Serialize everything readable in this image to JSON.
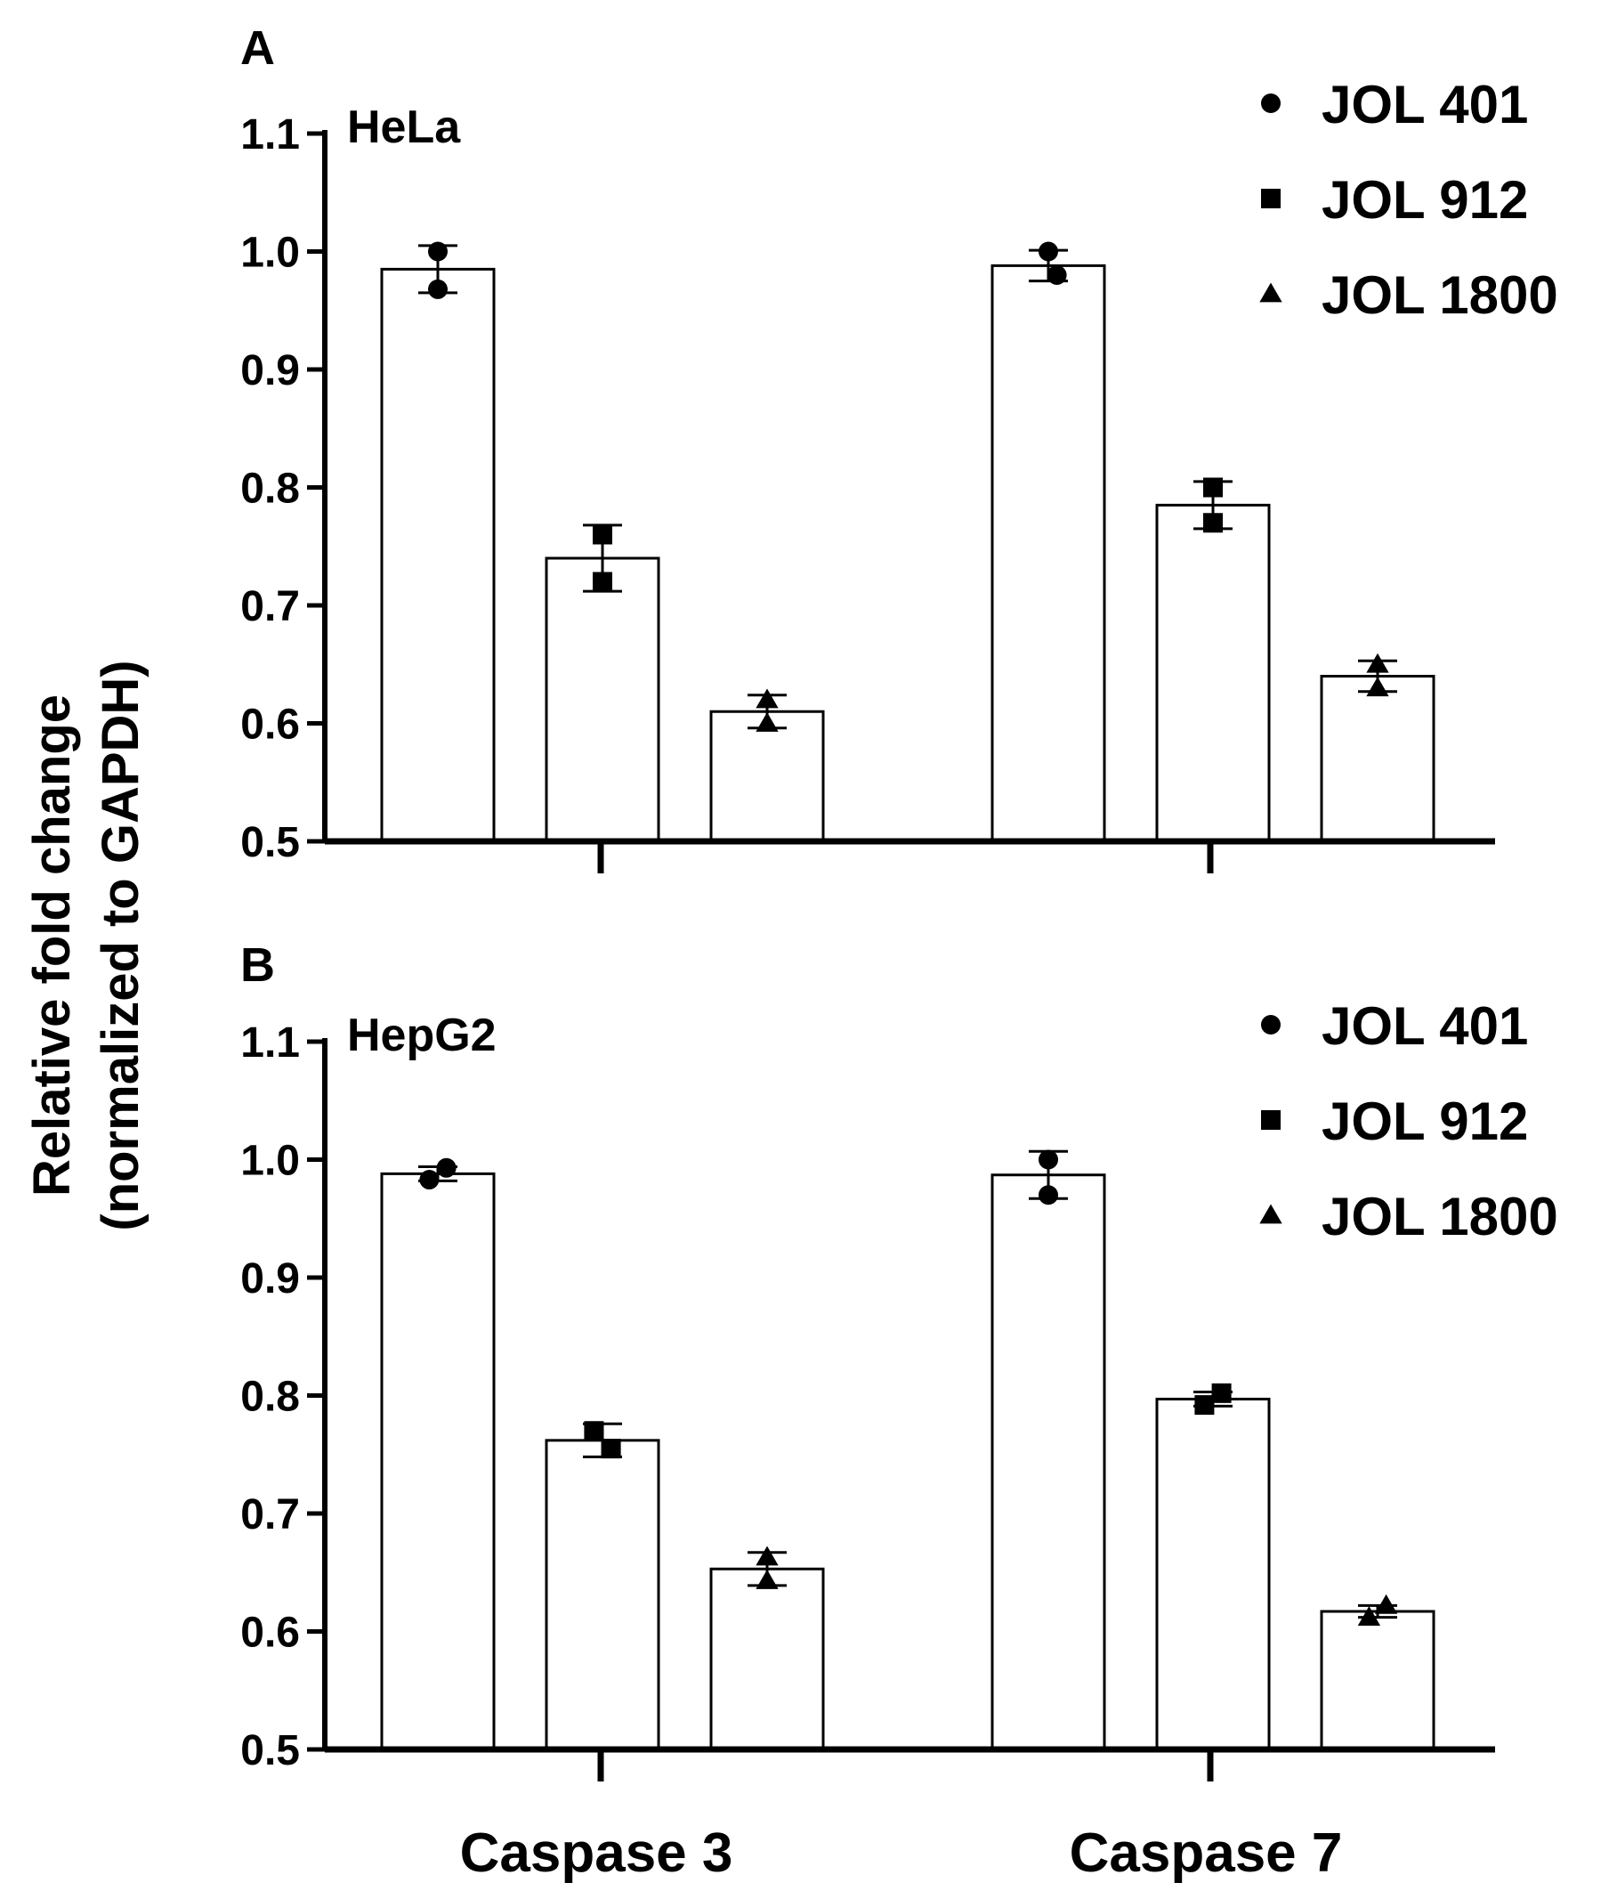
{
  "figure": {
    "ylabel_line1": "Relative fold change",
    "ylabel_line2": "(normalized to GAPDH)"
  },
  "chart_data": [
    {
      "type": "bar",
      "panel": "A",
      "cell_line": "HeLa",
      "categories": [
        "Caspase 3",
        "Caspase 7"
      ],
      "series": [
        {
          "name": "JOL 401",
          "marker": "circle",
          "values": [
            0.985,
            0.988
          ],
          "error": [
            0.02,
            0.013
          ],
          "points": [
            [
              1.0,
              0.968
            ],
            [
              1.0,
              0.98
            ]
          ]
        },
        {
          "name": "JOL 912",
          "marker": "square",
          "values": [
            0.74,
            0.785
          ],
          "error": [
            0.028,
            0.02
          ],
          "points": [
            [
              0.76,
              0.72
            ],
            [
              0.8,
              0.77
            ]
          ]
        },
        {
          "name": "JOL 1800",
          "marker": "triangle",
          "values": [
            0.61,
            0.64
          ],
          "error": [
            0.014,
            0.013
          ],
          "points": [
            [
              0.62,
              0.6
            ],
            [
              0.65,
              0.63
            ]
          ]
        }
      ],
      "ylim": [
        0.5,
        1.1
      ],
      "yticks": [
        0.5,
        0.6,
        0.7,
        0.8,
        0.9,
        1.0,
        1.1
      ],
      "ytick_labels": [
        "0.5",
        "0.6",
        "0.7",
        "0.8",
        "0.9",
        "1.0",
        "1.1"
      ],
      "xlabel": "",
      "ylabel": "Relative fold change (normalized to GAPDH)",
      "legend": "top-right"
    },
    {
      "type": "bar",
      "panel": "B",
      "cell_line": "HepG2",
      "categories": [
        "Caspase 3",
        "Caspase 7"
      ],
      "series": [
        {
          "name": "JOL 401",
          "marker": "circle",
          "values": [
            0.988,
            0.987
          ],
          "error": [
            0.006,
            0.02
          ],
          "points": [
            [
              0.983,
              0.993
            ],
            [
              1.0,
              0.97
            ]
          ]
        },
        {
          "name": "JOL 912",
          "marker": "square",
          "values": [
            0.762,
            0.797
          ],
          "error": [
            0.014,
            0.006
          ],
          "points": [
            [
              0.77,
              0.755
            ],
            [
              0.792,
              0.802
            ]
          ]
        },
        {
          "name": "JOL 1800",
          "marker": "triangle",
          "values": [
            0.653,
            0.617
          ],
          "error": [
            0.014,
            0.005
          ],
          "points": [
            [
              0.663,
              0.643
            ],
            [
              0.612,
              0.622
            ]
          ]
        }
      ],
      "ylim": [
        0.5,
        1.1
      ],
      "yticks": [
        0.5,
        0.6,
        0.7,
        0.8,
        0.9,
        1.0,
        1.1
      ],
      "ytick_labels": [
        "0.5",
        "0.6",
        "0.7",
        "0.8",
        "0.9",
        "1.0",
        "1.1"
      ],
      "xlabel": "",
      "ylabel": "Relative fold change (normalized to GAPDH)",
      "legend": "top-right"
    }
  ]
}
